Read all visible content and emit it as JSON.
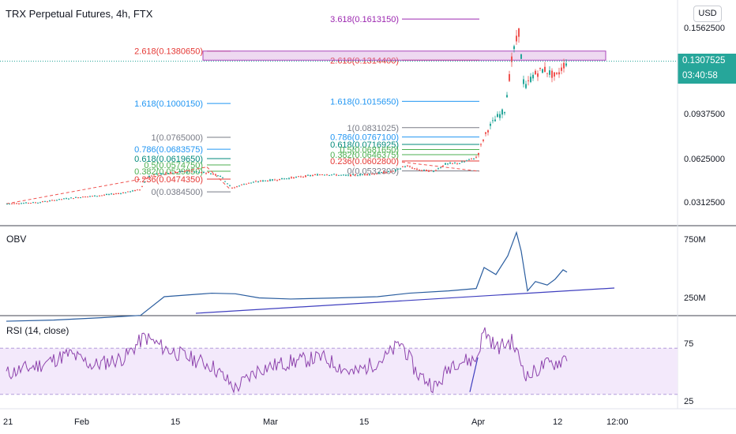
{
  "header": {
    "title": "TRX Perpetual Futures, 4h, FTX",
    "currency_button": "USD"
  },
  "price_tag": {
    "price": "0.1307525",
    "countdown": "03:40:58"
  },
  "colors": {
    "up": "#26a69a",
    "down": "#ef5350",
    "obv": "#2a5d9f",
    "rsi": "#8e44ad",
    "trend": "#3f3fbf",
    "band": "#f3e9fb"
  },
  "chart_data": [
    {
      "type": "candlestick",
      "name": "price",
      "title": "TRX Perpetual Futures, 4h, FTX",
      "y_ticks": [
        "0.1562500",
        "0.0937500",
        "0.0625000",
        "0.0312500"
      ],
      "current_price": 0.1307525,
      "path": [
        [
          0,
          0.03
        ],
        [
          40,
          0.031
        ],
        [
          79,
          0.034
        ],
        [
          120,
          0.036
        ],
        [
          150,
          0.038
        ],
        [
          168,
          0.04
        ],
        [
          178,
          0.049
        ],
        [
          190,
          0.051
        ],
        [
          210,
          0.052
        ],
        [
          230,
          0.053
        ],
        [
          255,
          0.052
        ],
        [
          270,
          0.05
        ],
        [
          285,
          0.041
        ],
        [
          300,
          0.044
        ],
        [
          320,
          0.046
        ],
        [
          340,
          0.047
        ],
        [
          370,
          0.049
        ],
        [
          400,
          0.051
        ],
        [
          430,
          0.05
        ],
        [
          460,
          0.051
        ],
        [
          490,
          0.053
        ],
        [
          505,
          0.057
        ],
        [
          520,
          0.054
        ],
        [
          540,
          0.053
        ],
        [
          555,
          0.058
        ],
        [
          575,
          0.059
        ],
        [
          595,
          0.063
        ],
        [
          603,
          0.075
        ],
        [
          610,
          0.083
        ],
        [
          620,
          0.09
        ],
        [
          630,
          0.095
        ],
        [
          640,
          0.135
        ],
        [
          648,
          0.152
        ],
        [
          655,
          0.11
        ],
        [
          665,
          0.12
        ],
        [
          680,
          0.125
        ],
        [
          695,
          0.119
        ],
        [
          705,
          0.128
        ],
        [
          710,
          0.131
        ]
      ],
      "fib_sets": [
        {
          "levels": [
            {
              "label": "2.618(0.1380650)",
              "value": 0.138065,
              "color": "#e53935"
            },
            {
              "label": "1.618(0.1000150)",
              "value": 0.100015,
              "color": "#2196f3"
            },
            {
              "label": "1(0.0765000)",
              "value": 0.0765,
              "color": "#787b86"
            },
            {
              "label": "0.786(0.0683575)",
              "value": 0.0683575,
              "color": "#2196f3"
            },
            {
              "label": "0.618(0.0619650)",
              "value": 0.061965,
              "color": "#00897b"
            },
            {
              "label": "0.5(0.0574750)",
              "value": 0.057475,
              "color": "#4caf50"
            },
            {
              "label": "0.382(0.0529850)",
              "value": 0.052985,
              "color": "#4caf50"
            },
            {
              "label": "0.236(0.0474350)",
              "value": 0.047435,
              "color": "#e53935"
            },
            {
              "label": "0(0.0384500)",
              "value": 0.03845,
              "color": "#787b86"
            }
          ]
        },
        {
          "levels": [
            {
              "label": "3.618(0.1613150)",
              "value": 0.161315,
              "color": "#9c27b0"
            },
            {
              "label": "2.618(0.1314400)",
              "value": 0.13144,
              "color": "#e53935"
            },
            {
              "label": "1.618(0.1015650)",
              "value": 0.101565,
              "color": "#2196f3"
            },
            {
              "label": "1(0.0831025)",
              "value": 0.0831025,
              "color": "#787b86"
            },
            {
              "label": "0.786(0.0767100)",
              "value": 0.07671,
              "color": "#2196f3"
            },
            {
              "label": "0.618(0.0716925)",
              "value": 0.0716925,
              "color": "#00897b"
            },
            {
              "label": "0.5(0.0681650)",
              "value": 0.068165,
              "color": "#4caf50"
            },
            {
              "label": "0.382(0.0646375)",
              "value": 0.0646375,
              "color": "#4caf50"
            },
            {
              "label": "0.236(0.0602800)",
              "value": 0.06028,
              "color": "#e53935"
            },
            {
              "label": "0(0.0532300)",
              "value": 0.05323,
              "color": "#787b86"
            }
          ]
        }
      ]
    },
    {
      "type": "line",
      "name": "obv",
      "title": "OBV",
      "y_ticks": [
        "750M",
        "250M"
      ],
      "values_path": [
        [
          0,
          40
        ],
        [
          60,
          50
        ],
        [
          120,
          70
        ],
        [
          170,
          90
        ],
        [
          200,
          250
        ],
        [
          230,
          265
        ],
        [
          260,
          280
        ],
        [
          290,
          275
        ],
        [
          320,
          240
        ],
        [
          360,
          230
        ],
        [
          420,
          240
        ],
        [
          470,
          250
        ],
        [
          510,
          280
        ],
        [
          560,
          300
        ],
        [
          595,
          320
        ],
        [
          605,
          500
        ],
        [
          620,
          440
        ],
        [
          635,
          600
        ],
        [
          646,
          800
        ],
        [
          652,
          640
        ],
        [
          660,
          300
        ],
        [
          670,
          380
        ],
        [
          685,
          350
        ],
        [
          695,
          400
        ],
        [
          705,
          480
        ],
        [
          710,
          460
        ]
      ]
    },
    {
      "type": "line",
      "name": "rsi",
      "title": "RSI (14, close)",
      "y_ticks": [
        "75",
        "25"
      ],
      "bands": [
        70,
        30
      ],
      "values_path": [
        [
          0,
          48
        ],
        [
          40,
          55
        ],
        [
          80,
          65
        ],
        [
          110,
          55
        ],
        [
          150,
          62
        ],
        [
          175,
          80
        ],
        [
          200,
          70
        ],
        [
          230,
          62
        ],
        [
          260,
          55
        ],
        [
          290,
          35
        ],
        [
          320,
          52
        ],
        [
          360,
          58
        ],
        [
          400,
          62
        ],
        [
          440,
          48
        ],
        [
          480,
          62
        ],
        [
          500,
          75
        ],
        [
          520,
          48
        ],
        [
          545,
          36
        ],
        [
          565,
          58
        ],
        [
          595,
          60
        ],
        [
          605,
          86
        ],
        [
          620,
          70
        ],
        [
          640,
          76
        ],
        [
          660,
          45
        ],
        [
          680,
          55
        ],
        [
          700,
          58
        ],
        [
          710,
          64
        ]
      ]
    }
  ],
  "x_axis": {
    "ticks": [
      "21",
      "Feb",
      "15",
      "Mar",
      "15",
      "Apr",
      "12",
      "12:00"
    ]
  }
}
